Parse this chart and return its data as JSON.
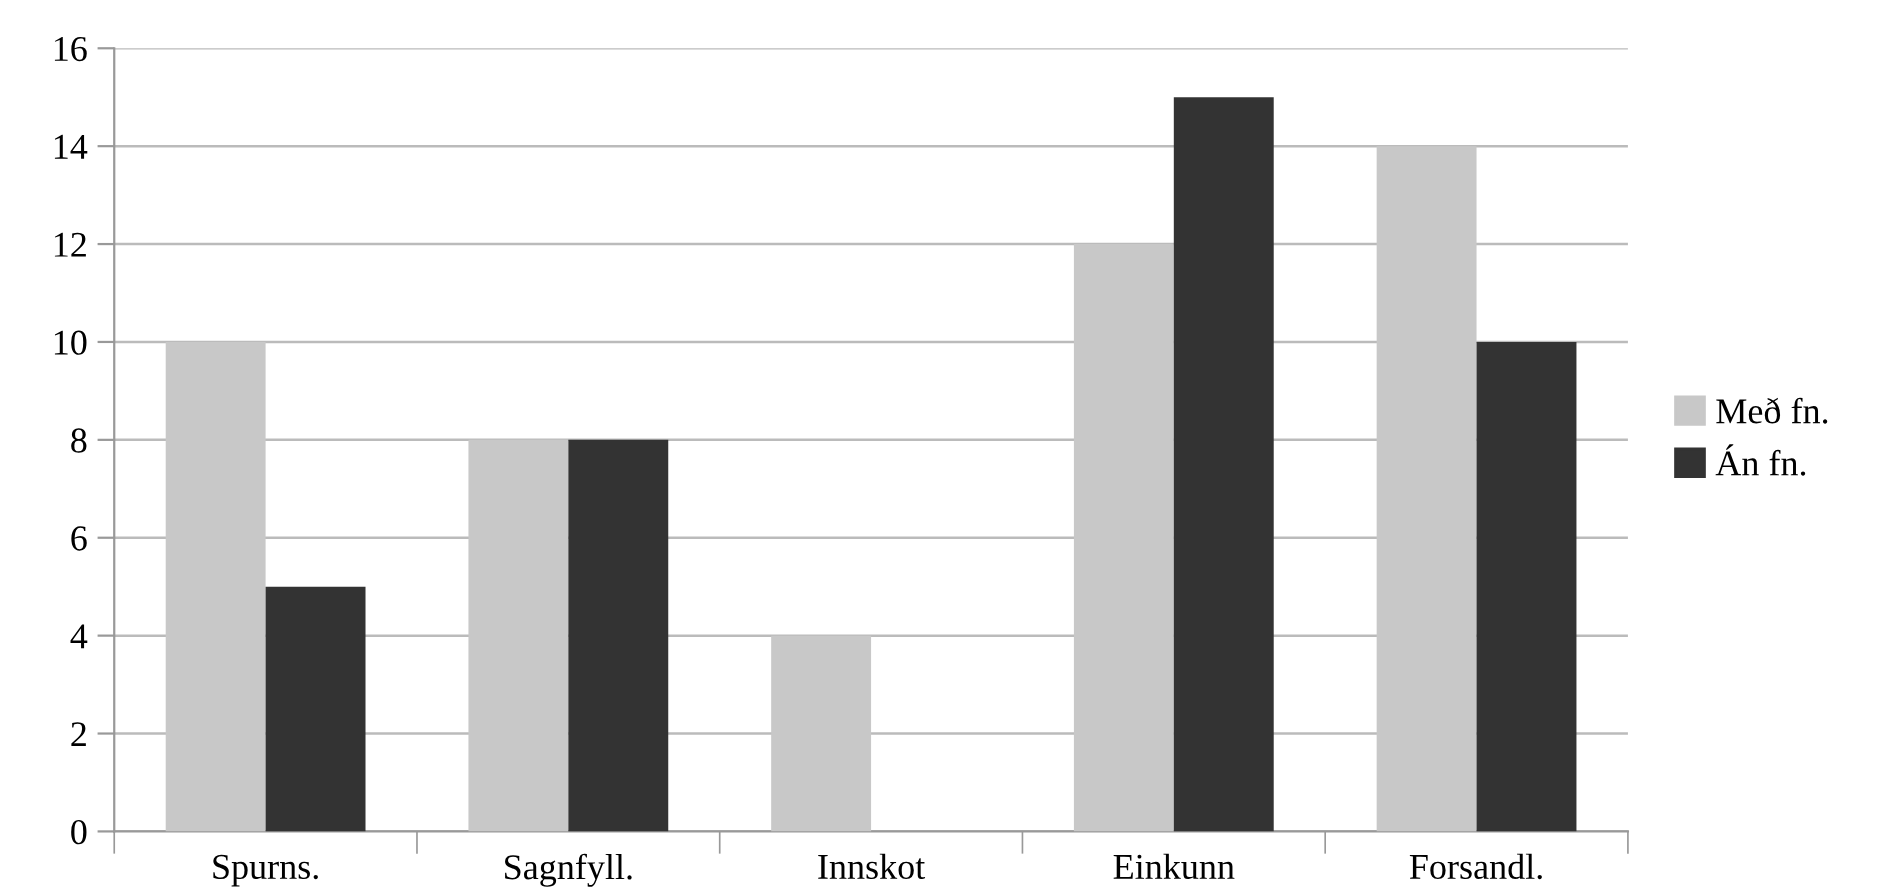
{
  "chart_data": {
    "type": "bar",
    "categories": [
      "Spurns.",
      "Sagnfyll.",
      "Innskot",
      "Einkunn",
      "Forsandl."
    ],
    "series": [
      {
        "name": "Með fn.",
        "color": "#c8c8c8",
        "values": [
          10,
          8,
          4,
          12,
          14
        ]
      },
      {
        "name": "Án fn.",
        "color": "#333333",
        "values": [
          5,
          8,
          0,
          15,
          10
        ]
      }
    ],
    "ylim": [
      0,
      16
    ],
    "yticks": [
      0,
      2,
      4,
      6,
      8,
      10,
      12,
      14,
      16
    ],
    "grid": "y",
    "legend": "right"
  }
}
